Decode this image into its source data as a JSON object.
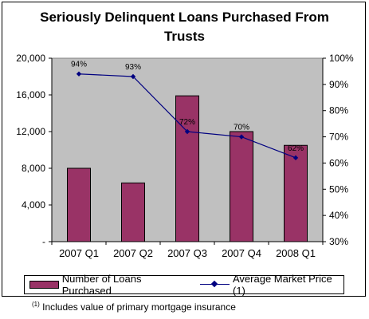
{
  "chart_data": {
    "type": "bar",
    "title": [
      "Seriously Delinquent Loans Purchased From",
      "Trusts"
    ],
    "categories": [
      "2007 Q1",
      "2007 Q2",
      "2007 Q3",
      "2007 Q4",
      "2008 Q1"
    ],
    "bar_series": {
      "name": "Number of Loans Purchased",
      "values": [
        8000,
        6400,
        15900,
        12000,
        10500
      ],
      "color": "#993366"
    },
    "line_series": {
      "name": "Average Market Price (1)",
      "values": [
        94,
        93,
        72,
        70,
        62
      ],
      "labels": [
        "94%",
        "93%",
        "72%",
        "70%",
        "62%"
      ],
      "color": "#000080"
    },
    "y_left": {
      "ylim": [
        0,
        20000
      ],
      "ticks": [
        0,
        4000,
        8000,
        12000,
        16000,
        20000
      ],
      "tick_labels": [
        "-",
        "4,000",
        "8,000",
        "12,000",
        "16,000",
        "20,000"
      ]
    },
    "y_right": {
      "ylim": [
        30,
        100
      ],
      "ticks": [
        30,
        40,
        50,
        60,
        70,
        80,
        90,
        100
      ],
      "tick_labels": [
        "30%",
        "40%",
        "50%",
        "60%",
        "70%",
        "80%",
        "90%",
        "100%"
      ]
    },
    "plot_background": "#c0c0c0",
    "grid": false,
    "legend_placement": "bottom"
  },
  "legend": {
    "bar_label": "Number of Loans Purchased",
    "line_label": "Average Market Price (1)"
  },
  "footnote": {
    "marker": "(1)",
    "text": " Includes value of primary mortgage insurance"
  }
}
